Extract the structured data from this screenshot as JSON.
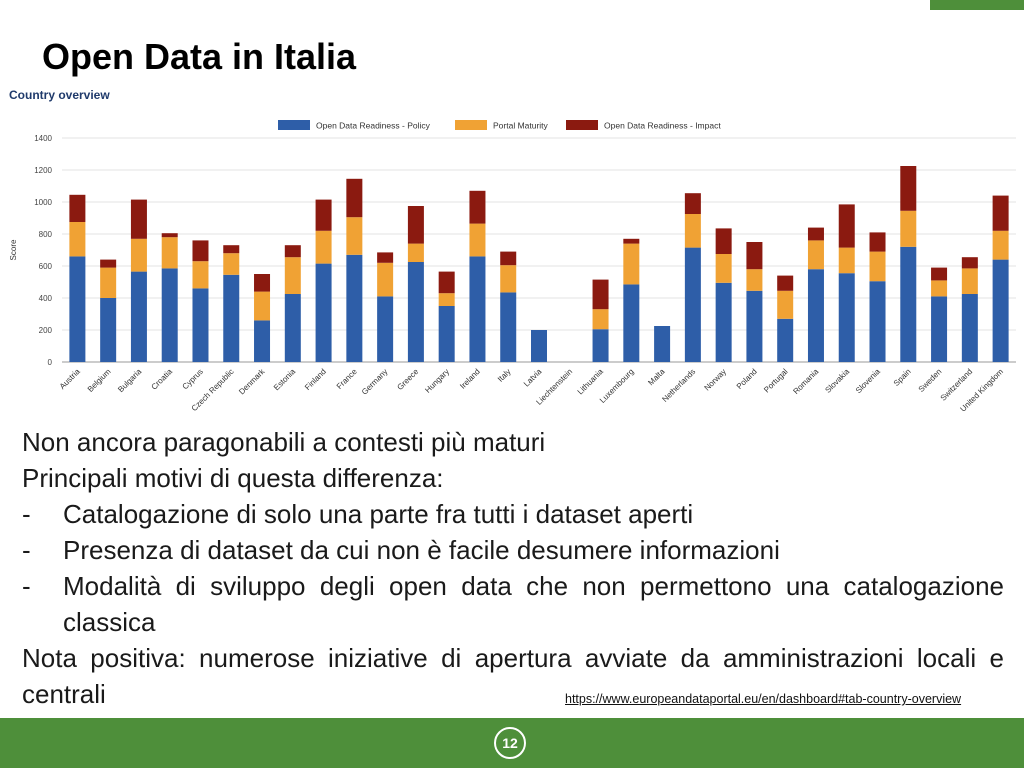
{
  "slide": {
    "title": "Open Data in Italia",
    "chart_header": "Country overview",
    "body_lines": [
      "Non ancora paragonabili a contesti più maturi",
      "Principali motivi di questa differenza:"
    ],
    "bullets": [
      "Catalogazione di solo una parte fra tutti i dataset aperti",
      "Presenza di dataset da cui non è facile desumere informazioni",
      "Modalità di sviluppo degli open data che non permettono una catalogazione classica"
    ],
    "bullet_marker": "-",
    "closing_line": "Nota positiva: numerose iniziative di apertura avviate da amministrazioni locali e centrali",
    "source_url": "https://www.europeandataportal.eu/en/dashboard#tab-country-overview",
    "page_number": "12"
  },
  "chart_data": {
    "type": "bar",
    "stacked": true,
    "title": "",
    "xlabel": "",
    "ylabel": "Score",
    "ylim": [
      0,
      1400
    ],
    "yticks": [
      0,
      200,
      400,
      600,
      800,
      1000,
      1200,
      1400
    ],
    "grid": true,
    "legend_position": "top",
    "categories": [
      "Austria",
      "Belgium",
      "Bulgaria",
      "Croatia",
      "Cyprus",
      "Czech Republic",
      "Denmark",
      "Estonia",
      "Finland",
      "France",
      "Germany",
      "Greece",
      "Hungary",
      "Ireland",
      "Italy",
      "Latvia",
      "Liechtenstein",
      "Lithuania",
      "Luxembourg",
      "Malta",
      "Netherlands",
      "Norway",
      "Poland",
      "Portugal",
      "Romania",
      "Slovakia",
      "Slovenia",
      "Spain",
      "Sweden",
      "Switzerland",
      "United Kingdom"
    ],
    "series": [
      {
        "name": "Open Data Readiness - Policy",
        "color": "#2e5ea8",
        "values": [
          660,
          400,
          565,
          585,
          460,
          545,
          260,
          425,
          615,
          670,
          410,
          625,
          350,
          660,
          435,
          200,
          0,
          205,
          485,
          225,
          715,
          495,
          445,
          270,
          580,
          555,
          505,
          720,
          410,
          425,
          640
        ]
      },
      {
        "name": "Portal Maturity",
        "color": "#f0a234",
        "values": [
          215,
          190,
          205,
          195,
          170,
          135,
          180,
          230,
          205,
          235,
          210,
          115,
          80,
          205,
          170,
          0,
          0,
          125,
          255,
          0,
          210,
          180,
          135,
          175,
          180,
          160,
          185,
          225,
          100,
          160,
          180
        ]
      },
      {
        "name": "Open Data Readiness - Impact",
        "color": "#8b1a10",
        "values": [
          170,
          50,
          245,
          25,
          130,
          50,
          110,
          75,
          195,
          240,
          65,
          235,
          135,
          205,
          85,
          0,
          0,
          185,
          30,
          0,
          130,
          160,
          170,
          95,
          80,
          270,
          120,
          280,
          80,
          70,
          220
        ]
      }
    ]
  }
}
